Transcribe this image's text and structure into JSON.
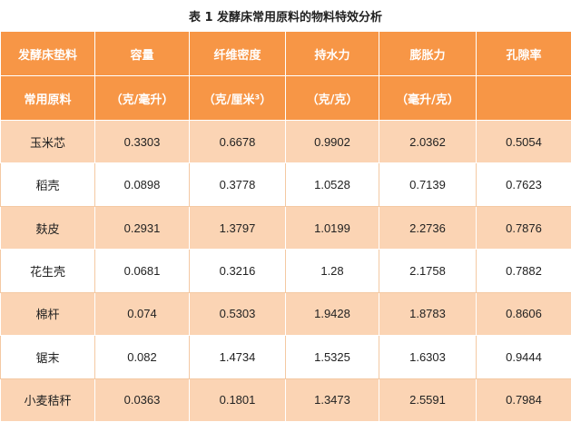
{
  "caption": "表 1  发酵床常用原料的物料特效分析",
  "headers": [
    {
      "line1": "发酵床垫料",
      "line2": "常用原料"
    },
    {
      "line1": "容量",
      "line2": "（克/毫升）"
    },
    {
      "line1": "纤维密度",
      "line2": "（克/厘米³）"
    },
    {
      "line1": "持水力",
      "line2": "（克/克）"
    },
    {
      "line1": "膨胀力",
      "line2": "（毫升/克）"
    },
    {
      "line1": "孔隙率",
      "line2": ""
    }
  ],
  "rows": [
    [
      "玉米芯",
      "0.3303",
      "0.6678",
      "0.9902",
      "2.0362",
      "0.5054"
    ],
    [
      "稻壳",
      "0.0898",
      "0.3778",
      "1.0528",
      "0.7139",
      "0.7623"
    ],
    [
      "麸皮",
      "0.2931",
      "1.3797",
      "1.0199",
      "2.2736",
      "0.7876"
    ],
    [
      "花生壳",
      "0.0681",
      "0.3216",
      "1.28",
      "2.1758",
      "0.7882"
    ],
    [
      "棉杆",
      "0.074",
      "0.5303",
      "1.9428",
      "1.8783",
      "0.8606"
    ],
    [
      "锯末",
      "0.082",
      "1.4734",
      "1.5325",
      "1.6303",
      "0.9444"
    ],
    [
      "小麦秸秆",
      "0.0363",
      "0.1801",
      "1.3473",
      "2.5591",
      "0.7984"
    ]
  ],
  "colors": {
    "header_bg": "#f79646",
    "odd_row_bg": "#fbd4b4",
    "even_row_bg": "#ffffff"
  }
}
